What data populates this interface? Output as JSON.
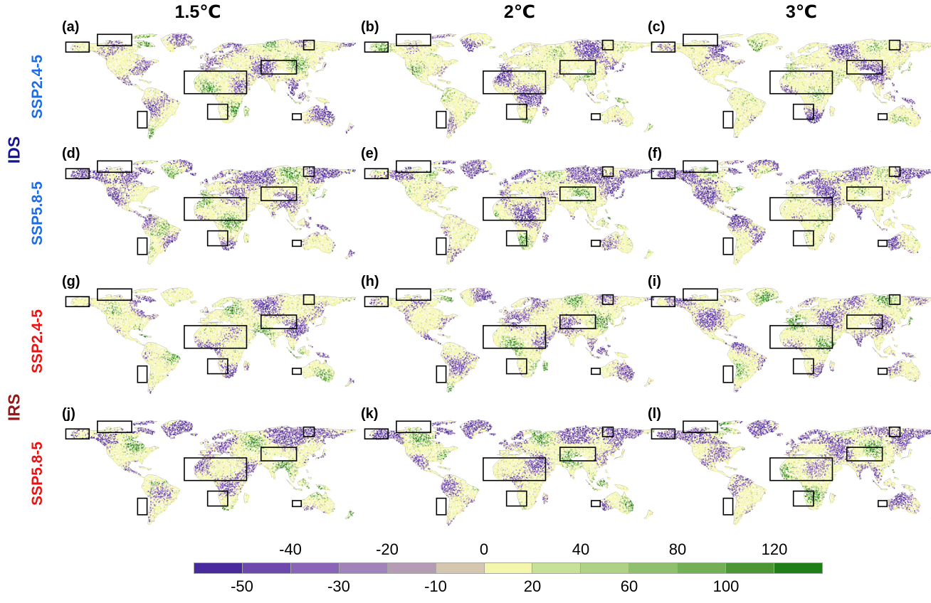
{
  "figure": {
    "columns": [
      {
        "label": "1.5℃"
      },
      {
        "label": "2℃"
      },
      {
        "label": "3℃"
      }
    ],
    "row_groups": [
      {
        "label": "IDS",
        "color": "#16168e"
      },
      {
        "label": "IRS",
        "color": "#951717"
      }
    ],
    "rows": [
      {
        "scenario": "SSP2.4-5",
        "group": "IDS",
        "color": "#1c6ce8"
      },
      {
        "scenario": "SSP5.8-5",
        "group": "IDS",
        "color": "#1c6ce8"
      },
      {
        "scenario": "SSP2.4-5",
        "group": "IRS",
        "color": "#ee1010"
      },
      {
        "scenario": "SSP5.8-5",
        "group": "IRS",
        "color": "#ee1010"
      }
    ],
    "panels": [
      {
        "label": "(a)",
        "row": 0,
        "col": 0
      },
      {
        "label": "(b)",
        "row": 0,
        "col": 1
      },
      {
        "label": "(c)",
        "row": 0,
        "col": 2
      },
      {
        "label": "(d)",
        "row": 1,
        "col": 0
      },
      {
        "label": "(e)",
        "row": 1,
        "col": 1
      },
      {
        "label": "(f)",
        "row": 1,
        "col": 2
      },
      {
        "label": "(g)",
        "row": 2,
        "col": 0
      },
      {
        "label": "(h)",
        "row": 2,
        "col": 1
      },
      {
        "label": "(i)",
        "row": 2,
        "col": 2
      },
      {
        "label": "(j)",
        "row": 3,
        "col": 0
      },
      {
        "label": "(k)",
        "row": 3,
        "col": 1
      },
      {
        "label": "(l)",
        "row": 3,
        "col": 2
      }
    ]
  },
  "chart_data": {
    "type": "heatmap",
    "layout": "4x3 grid of global maps; columns = warming levels, rows = index x scenario",
    "column_variable": "global warming level",
    "columns": [
      "1.5℃",
      "2℃",
      "3℃"
    ],
    "row_variable": "index and scenario",
    "rows": [
      "IDS SSP2.4-5",
      "IDS SSP5.8-5",
      "IRS SSP2.4-5",
      "IRS SSP5.8-5"
    ],
    "panel_labels": [
      "(a)",
      "(b)",
      "(c)",
      "(d)",
      "(e)",
      "(f)",
      "(g)",
      "(h)",
      "(i)",
      "(j)",
      "(k)",
      "(l)"
    ],
    "legend_position": "bottom horizontal colorbar",
    "colorbar": {
      "orientation": "horizontal",
      "bin_edges": [
        -50,
        -40,
        -30,
        -20,
        -10,
        0,
        20,
        40,
        60,
        80,
        100,
        120
      ],
      "tick_labels_top": [
        "-40",
        "-20",
        "0",
        "40",
        "80",
        "120"
      ],
      "tick_labels_bottom": [
        "-50",
        "-30",
        "-10",
        "20",
        "60",
        "100"
      ],
      "segment_colors": [
        "#482a9d",
        "#6e49ad",
        "#8a64b6",
        "#a083bb",
        "#b49cb5",
        "#d5c7af",
        "#f4f6ac",
        "#c7e298",
        "#aed184",
        "#8fc06c",
        "#73b055",
        "#4d9634",
        "#1f7e16"
      ],
      "border_color": "#a6a6a6"
    },
    "map_style": {
      "ocean_color": "#ffffff",
      "coastline_color": "#a0a0a0",
      "dominant_land_speckle": "#f4f6ac",
      "negative_speckles": [
        "#482a9d",
        "#6e49ad",
        "#8a64b6",
        "#a083bb",
        "#b49cb5",
        "#d5c7af"
      ],
      "positive_speckles": [
        "#c7e298",
        "#aed184",
        "#8fc06c",
        "#73b055",
        "#4d9634",
        "#1f7e16"
      ]
    },
    "highlight_boxes": [
      {
        "name": "alaska",
        "x": 0.018,
        "y": 0.087,
        "w": 0.079,
        "h": 0.092
      },
      {
        "name": "northern-canada",
        "x": 0.125,
        "y": 0.015,
        "w": 0.116,
        "h": 0.105
      },
      {
        "name": "northeast-siberia",
        "x": 0.823,
        "y": 0.07,
        "w": 0.036,
        "h": 0.088
      },
      {
        "name": "mediterranean-sahara-middle-east",
        "x": 0.419,
        "y": 0.355,
        "w": 0.211,
        "h": 0.209
      },
      {
        "name": "central-east-asia",
        "x": 0.679,
        "y": 0.257,
        "w": 0.12,
        "h": 0.125
      },
      {
        "name": "southern-africa",
        "x": 0.498,
        "y": 0.662,
        "w": 0.068,
        "h": 0.138
      },
      {
        "name": "chile",
        "x": 0.261,
        "y": 0.728,
        "w": 0.032,
        "h": 0.153
      },
      {
        "name": "western-australia",
        "x": 0.785,
        "y": 0.75,
        "w": 0.03,
        "h": 0.055
      }
    ]
  }
}
